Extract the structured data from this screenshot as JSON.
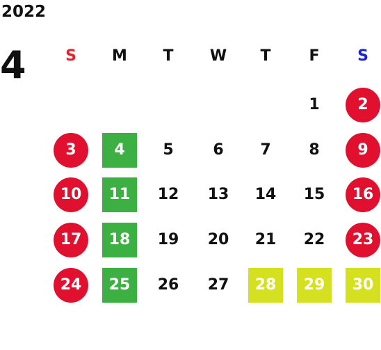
{
  "calendar": {
    "year": "2022",
    "month": "4",
    "weekdays": [
      "S",
      "M",
      "T",
      "W",
      "T",
      "F",
      "S"
    ],
    "colors": {
      "sunday_header": "#e8202a",
      "saturday_header": "#1a22d8",
      "holiday_circle": "#e0102e",
      "green_square": "#3cb043",
      "yellow_square": "#d4e020",
      "highlight_text": "#ffffff",
      "plain_text": "#111111"
    },
    "weeks": [
      [
        null,
        null,
        null,
        null,
        null,
        {
          "d": "1",
          "t": "plain"
        },
        {
          "d": "2",
          "t": "circle"
        }
      ],
      [
        {
          "d": "3",
          "t": "circle"
        },
        {
          "d": "4",
          "t": "green"
        },
        {
          "d": "5",
          "t": "plain"
        },
        {
          "d": "6",
          "t": "plain"
        },
        {
          "d": "7",
          "t": "plain"
        },
        {
          "d": "8",
          "t": "plain"
        },
        {
          "d": "9",
          "t": "circle"
        }
      ],
      [
        {
          "d": "10",
          "t": "circle"
        },
        {
          "d": "11",
          "t": "green"
        },
        {
          "d": "12",
          "t": "plain"
        },
        {
          "d": "13",
          "t": "plain"
        },
        {
          "d": "14",
          "t": "plain"
        },
        {
          "d": "15",
          "t": "plain"
        },
        {
          "d": "16",
          "t": "circle"
        }
      ],
      [
        {
          "d": "17",
          "t": "circle"
        },
        {
          "d": "18",
          "t": "green"
        },
        {
          "d": "19",
          "t": "plain"
        },
        {
          "d": "20",
          "t": "plain"
        },
        {
          "d": "21",
          "t": "plain"
        },
        {
          "d": "22",
          "t": "plain"
        },
        {
          "d": "23",
          "t": "circle"
        }
      ],
      [
        {
          "d": "24",
          "t": "circle"
        },
        {
          "d": "25",
          "t": "green"
        },
        {
          "d": "26",
          "t": "plain"
        },
        {
          "d": "27",
          "t": "plain"
        },
        {
          "d": "28",
          "t": "yellow"
        },
        {
          "d": "29",
          "t": "yellow"
        },
        {
          "d": "30",
          "t": "yellow"
        }
      ]
    ]
  }
}
